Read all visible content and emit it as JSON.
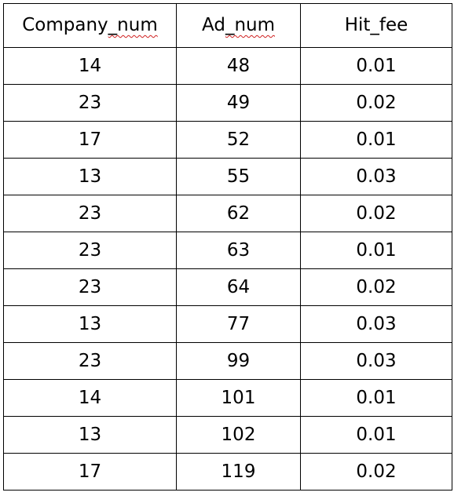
{
  "table": {
    "columns": [
      {
        "prefix": "Company",
        "suffix": "_num"
      },
      {
        "prefix": "Ad",
        "suffix": "_num"
      },
      {
        "prefix": "Hit_fee",
        "suffix": ""
      }
    ],
    "rows": [
      [
        "14",
        "48",
        "0.01"
      ],
      [
        "23",
        "49",
        "0.02"
      ],
      [
        "17",
        "52",
        "0.01"
      ],
      [
        "13",
        "55",
        "0.03"
      ],
      [
        "23",
        "62",
        "0.02"
      ],
      [
        "23",
        "63",
        "0.01"
      ],
      [
        "23",
        "64",
        "0.02"
      ],
      [
        "13",
        "77",
        "0.03"
      ],
      [
        "23",
        "99",
        "0.03"
      ],
      [
        "14",
        "101",
        "0.01"
      ],
      [
        "13",
        "102",
        "0.01"
      ],
      [
        "17",
        "119",
        "0.02"
      ]
    ]
  }
}
